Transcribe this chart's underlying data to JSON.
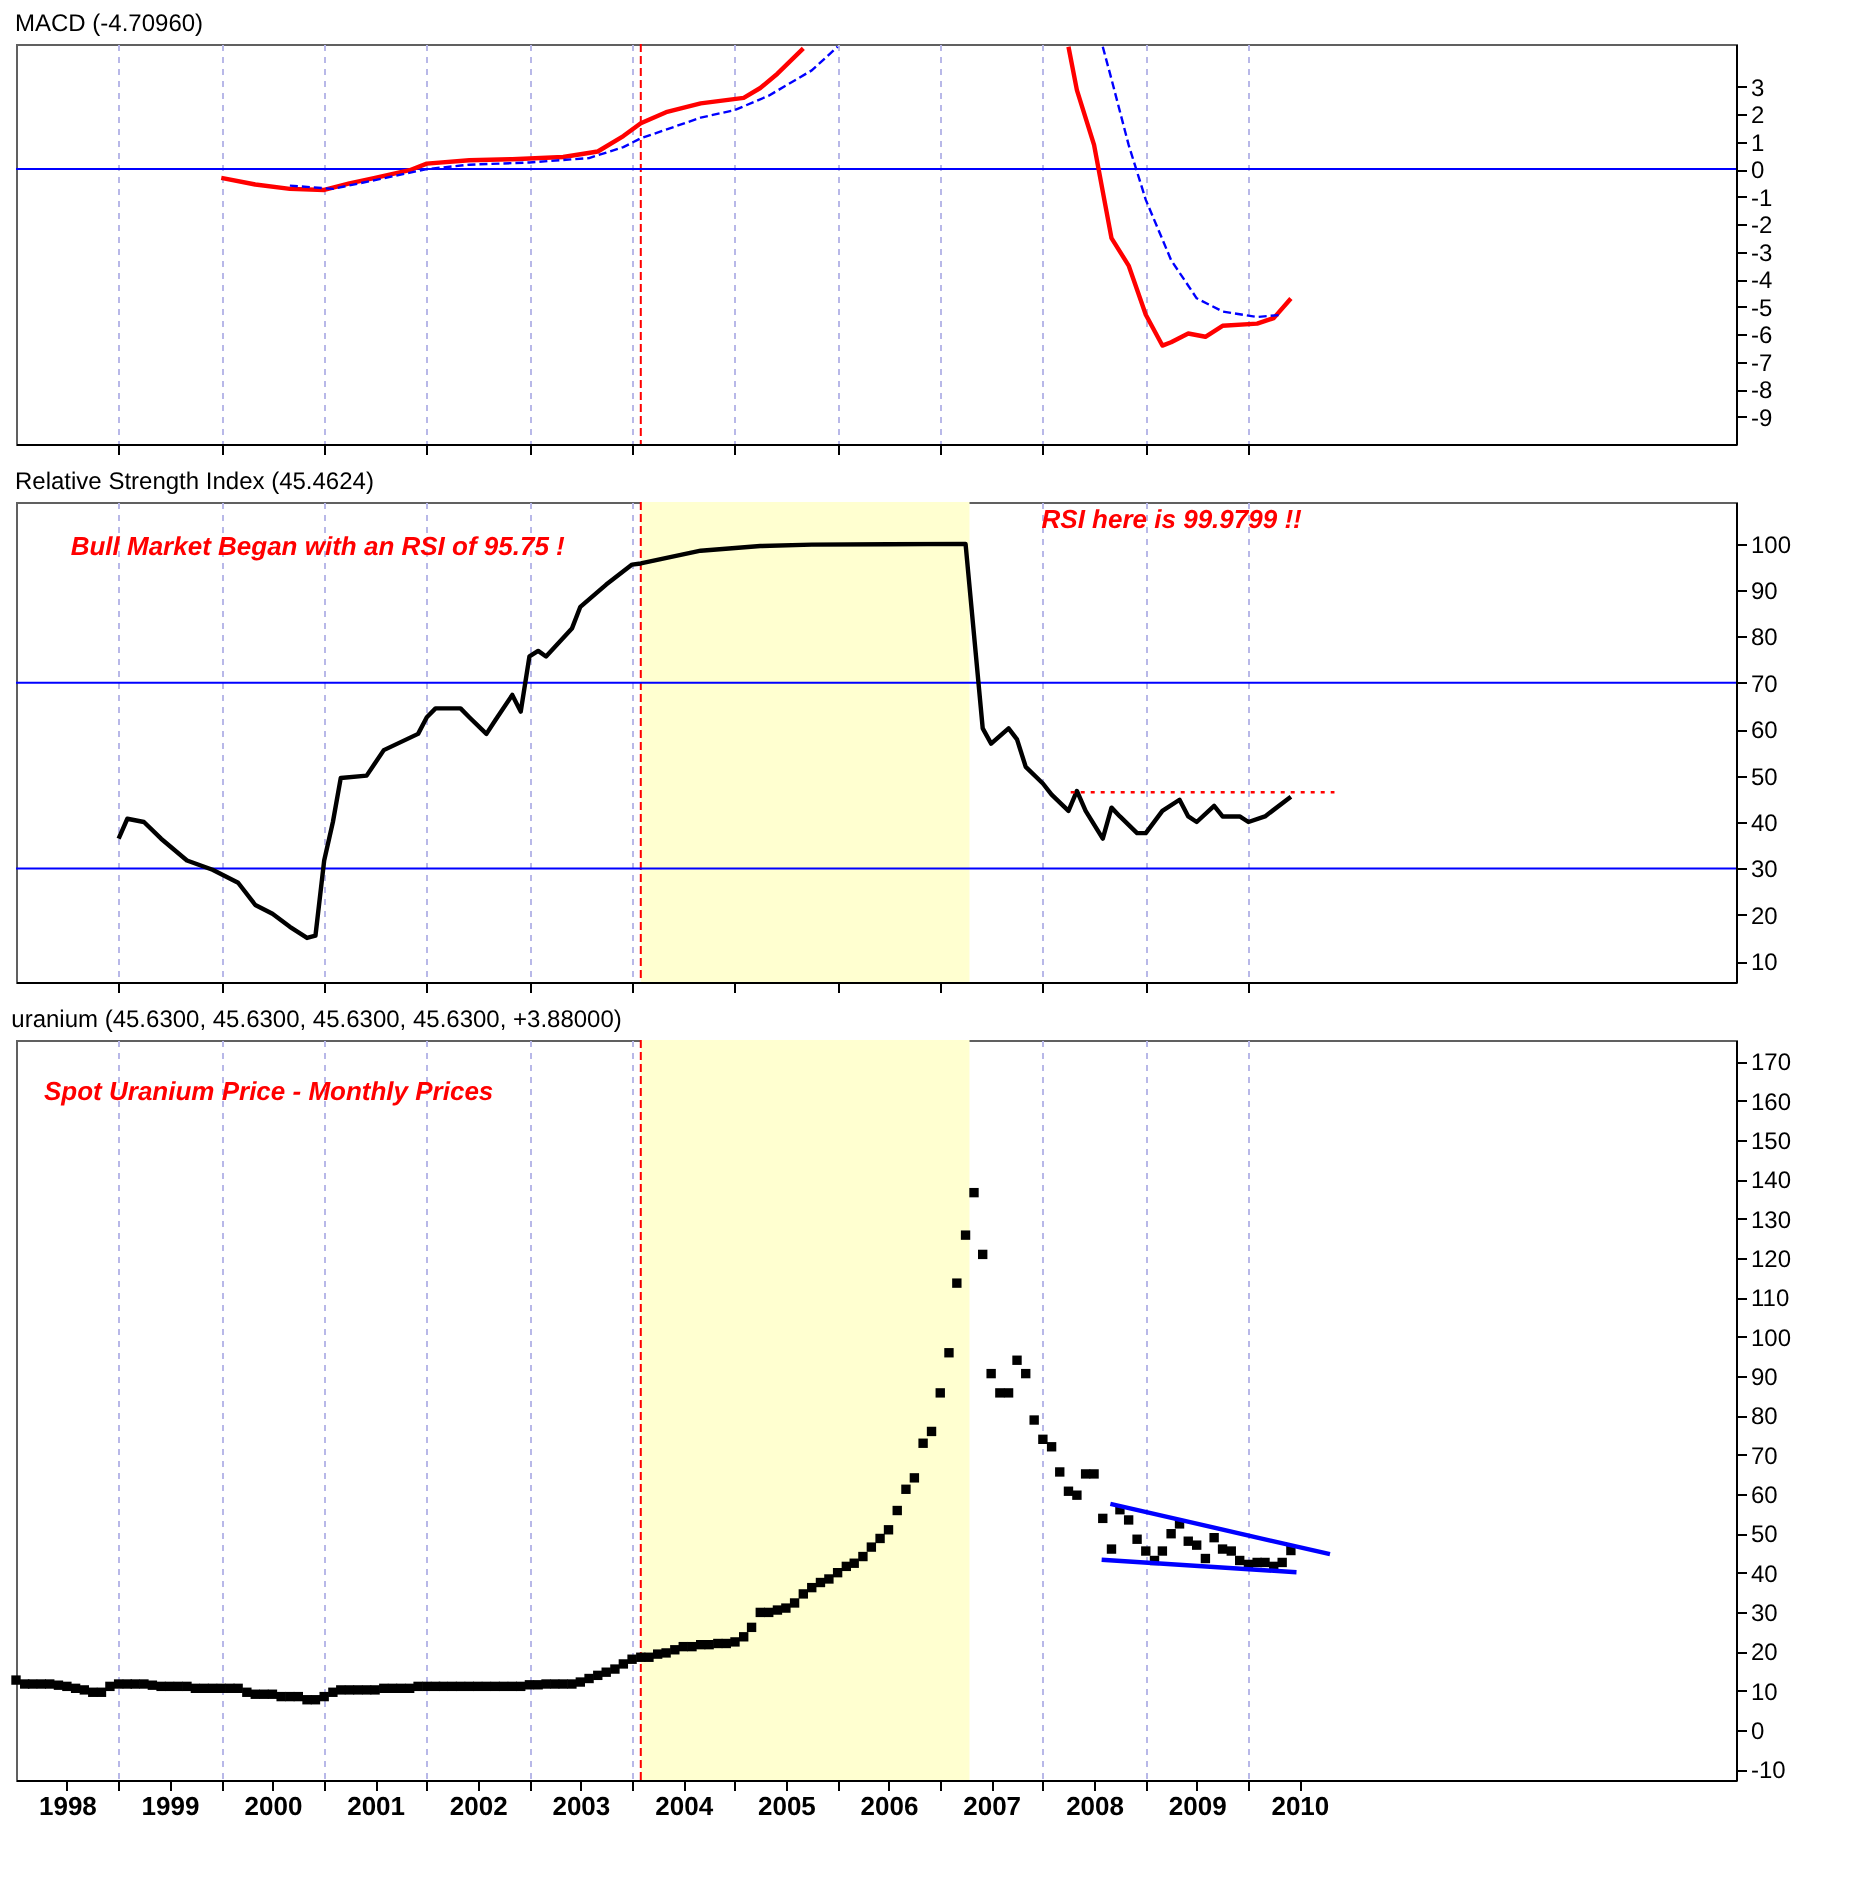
{
  "chart_data": [
    {
      "type": "line",
      "title": "MACD (-4.70960)",
      "xlim": [
        "1998-01",
        "2014-10"
      ],
      "ylim": [
        -10,
        4.55
      ],
      "yticks": [
        -9,
        -8,
        -7,
        -6,
        -5,
        -4,
        -3,
        -2,
        -1,
        0,
        1,
        2,
        3
      ],
      "grid": "x",
      "tick_labels": "y",
      "xticks": [
        {
          "value": "1999",
          "label": null
        },
        {
          "value": "2000",
          "label": null
        },
        {
          "value": "2001",
          "label": null
        },
        {
          "value": "2002",
          "label": null
        },
        {
          "value": "2003",
          "label": null
        },
        {
          "value": "2004",
          "label": null
        },
        {
          "value": "2005",
          "label": null
        },
        {
          "value": "2006",
          "label": null
        },
        {
          "value": "2007",
          "label": null
        },
        {
          "value": "2008",
          "label": null
        },
        {
          "value": "2009",
          "label": null
        },
        {
          "value": "2010",
          "label": null
        }
      ],
      "ref_lines": [
        {
          "axis": "x",
          "value": "2004-02",
          "color": "#ff0000",
          "line_style": "dashed"
        },
        {
          "axis": "y",
          "value": 0,
          "color": "#0000ff"
        }
      ],
      "series": [
        {
          "color": "#ff0000",
          "x": [
            "2000-01",
            "2000-05",
            "2000-09",
            "2001-01",
            "2001-04",
            "2001-07",
            "2001-11",
            "2002-01",
            "2002-06",
            "2002-11",
            "2003-05",
            "2003-09",
            "2003-12",
            "2004-02",
            "2004-05",
            "2004-09",
            "2005-02",
            "2005-04",
            "2005-06",
            "2005-09",
            "2006-06",
            "2008-04",
            "2008-05",
            "2008-07",
            "2008-09",
            "2008-11",
            "2009-01",
            "2009-03",
            "2009-04",
            "2009-06",
            "2009-08",
            "2009-10",
            "2010-02",
            "2010-04",
            "2010-06"
          ],
          "values": [
            -0.32,
            -0.56,
            -0.72,
            -0.76,
            -0.52,
            -0.32,
            -0.04,
            0.2,
            0.32,
            0.36,
            0.44,
            0.64,
            1.2,
            1.67,
            2.07,
            2.39,
            2.59,
            2.95,
            3.47,
            4.39,
            null,
            4.45,
            2.87,
            0.88,
            -2.51,
            -3.51,
            -5.3,
            -6.42,
            -6.3,
            -5.98,
            -6.1,
            -5.7,
            -5.62,
            -5.42,
            -4.71
          ]
        },
        {
          "color": "#0000ff",
          "line_style": "dashed",
          "x": [
            "2000-09",
            "2001-02",
            "2001-07",
            "2002-01",
            "2002-06",
            "2003-01",
            "2003-08",
            "2003-12",
            "2004-02",
            "2004-09",
            "2005-01",
            "2005-05",
            "2005-10",
            "2006-01",
            "2007-01",
            "2008-08",
            "2008-09",
            "2008-11",
            "2009-01",
            "2009-04",
            "2009-07",
            "2009-10",
            "2010-02",
            "2010-05"
          ],
          "values": [
            -0.6,
            -0.72,
            -0.4,
            0,
            0.16,
            0.24,
            0.4,
            0.8,
            1.12,
            1.87,
            2.15,
            2.67,
            3.59,
            4.45,
            null,
            4.45,
            3.27,
            0.88,
            -1.12,
            -3.31,
            -4.7,
            -5.18,
            -5.38,
            -5.3
          ]
        }
      ]
    },
    {
      "type": "line",
      "title": "Relative Strength Index (45.4624)",
      "xlim": [
        "1998-01",
        "2014-10"
      ],
      "ylim": [
        5.5,
        109
      ],
      "yticks": [
        10,
        20,
        30,
        40,
        50,
        60,
        70,
        80,
        90,
        100
      ],
      "grid": "x",
      "tick_labels": "y",
      "xticks": [
        {
          "value": "1999",
          "label": null
        },
        {
          "value": "2000",
          "label": null
        },
        {
          "value": "2001",
          "label": null
        },
        {
          "value": "2002",
          "label": null
        },
        {
          "value": "2003",
          "label": null
        },
        {
          "value": "2004",
          "label": null
        },
        {
          "value": "2005",
          "label": null
        },
        {
          "value": "2006",
          "label": null
        },
        {
          "value": "2007",
          "label": null
        },
        {
          "value": "2008",
          "label": null
        },
        {
          "value": "2009",
          "label": null
        },
        {
          "value": "2010",
          "label": null
        }
      ],
      "bands": [
        {
          "axis": "x",
          "from": "2004-02",
          "to": "2007-04-15",
          "color": "#ffffd0"
        }
      ],
      "ref_lines": [
        {
          "axis": "x",
          "value": "2004-02",
          "color": "#ff0000",
          "line_style": "dashed"
        },
        {
          "axis": "y",
          "value": 70,
          "color": "#0000ff"
        },
        {
          "axis": "y",
          "value": 30,
          "color": "#0000ff"
        }
      ],
      "annotations": [
        {
          "text": "Bull Market Began with an RSI of 95.75 !",
          "x": "2004-02",
          "y": 95.75
        },
        {
          "text": "RSI here is 99.9799  !!",
          "x": "2007-04",
          "y": 99.98
        }
      ],
      "series": [
        {
          "color": "#000000",
          "x": [
            "1999-01",
            "1999-02",
            "1999-04",
            "1999-06",
            "1999-09",
            "1999-12",
            "2000-03",
            "2000-05",
            "2000-07",
            "2000-09",
            "2000-11",
            "2000-12",
            "2001-01",
            "2001-02",
            "2001-03",
            "2001-06",
            "2001-08",
            "2001-12",
            "2002-01",
            "2002-02",
            "2002-05",
            "2002-06",
            "2002-08",
            "2002-09",
            "2002-11",
            "2002-12",
            "2003-01",
            "2003-02",
            "2003-03",
            "2003-06",
            "2003-07",
            "2003-10",
            "2004-01",
            "2004-02",
            "2004-09",
            "2005-04",
            "2005-10",
            "2006-07",
            "2007-04",
            "2007-06",
            "2007-07",
            "2007-09",
            "2007-10",
            "2007-11",
            "2008-01",
            "2008-02",
            "2008-04",
            "2008-05",
            "2008-06",
            "2008-08",
            "2008-09",
            "2008-10",
            "2008-12",
            "2009-01",
            "2009-03",
            "2009-05",
            "2009-06",
            "2009-07",
            "2009-09",
            "2009-10",
            "2009-12",
            "2010-01",
            "2010-03",
            "2010-06"
          ],
          "values": [
            36.4,
            40.7,
            40,
            36.4,
            31.7,
            29.7,
            26.9,
            22.1,
            20.2,
            17.4,
            15,
            15.5,
            31.7,
            40,
            49.5,
            50,
            55.5,
            59,
            62.6,
            64.5,
            64.5,
            62.6,
            59,
            61.9,
            67.4,
            63.8,
            75.7,
            76.9,
            75.7,
            81.7,
            86.4,
            91.2,
            95.5,
            95.75,
            98.5,
            99.5,
            99.8,
            99.9,
            99.98,
            60.2,
            56.9,
            60.2,
            57.8,
            51.9,
            48.3,
            45.9,
            42.4,
            46.7,
            42.4,
            36.4,
            43.1,
            41.2,
            37.6,
            37.6,
            42.4,
            44.8,
            41.2,
            40,
            43.5,
            41.2,
            41.2,
            40,
            41.2,
            45.46
          ]
        },
        {
          "color": "#ff0000",
          "line_style": "dotted",
          "x": [
            "2008-04-09",
            "2010-11-03"
          ],
          "values": [
            46.4,
            46.4
          ]
        }
      ]
    },
    {
      "type": "scatter",
      "title": "uranium (45.6300, 45.6300, 45.6300, 45.6300, +3.88000)",
      "xlim": [
        "1998-01",
        "2014-10"
      ],
      "ylim": [
        -12.7,
        175.4
      ],
      "yticks": [
        -10,
        0,
        10,
        20,
        30,
        40,
        50,
        60,
        70,
        80,
        90,
        100,
        110,
        120,
        130,
        140,
        150,
        160,
        170
      ],
      "grid": "x",
      "xticks": [
        {
          "value": "1998-07",
          "label": "1998"
        },
        {
          "value": "1999",
          "label": null
        },
        {
          "value": "1999-07",
          "label": "1999"
        },
        {
          "value": "2000",
          "label": null
        },
        {
          "value": "2000-07",
          "label": "2000"
        },
        {
          "value": "2001",
          "label": null
        },
        {
          "value": "2001-07",
          "label": "2001"
        },
        {
          "value": "2002",
          "label": null
        },
        {
          "value": "2002-07",
          "label": "2002"
        },
        {
          "value": "2003",
          "label": null
        },
        {
          "value": "2003-07",
          "label": "2003"
        },
        {
          "value": "2004",
          "label": null
        },
        {
          "value": "2004-07",
          "label": "2004"
        },
        {
          "value": "2005",
          "label": null
        },
        {
          "value": "2005-07",
          "label": "2005"
        },
        {
          "value": "2006",
          "label": null
        },
        {
          "value": "2006-07",
          "label": "2006"
        },
        {
          "value": "2007",
          "label": null
        },
        {
          "value": "2007-07",
          "label": "2007"
        },
        {
          "value": "2008",
          "label": null
        },
        {
          "value": "2008-07",
          "label": "2008"
        },
        {
          "value": "2009",
          "label": null
        },
        {
          "value": "2009-07",
          "label": "2009"
        },
        {
          "value": "2010",
          "label": null
        },
        {
          "value": "2010-07",
          "label": "2010"
        }
      ],
      "bands": [
        {
          "axis": "x",
          "from": "2004-02",
          "to": "2007-04-15",
          "color": "#ffffd0"
        }
      ],
      "ref_lines": [
        {
          "axis": "x",
          "value": "2004-02",
          "color": "#ff0000",
          "line_style": "dashed"
        }
      ],
      "annotations": [
        "Spot Uranium Price - Monthly Prices"
      ],
      "series": [
        {
          "color": "#000000",
          "marker": "square",
          "x": [
            "1998-01",
            "1998-02",
            "1998-03",
            "1998-04",
            "1998-05",
            "1998-06",
            "1998-07",
            "1998-08",
            "1998-09",
            "1998-10",
            "1998-11",
            "1998-12",
            "1999-01",
            "1999-02",
            "1999-03",
            "1999-04",
            "1999-05",
            "1999-06",
            "1999-07",
            "1999-08",
            "1999-09",
            "1999-10",
            "1999-11",
            "1999-12",
            "2000-01",
            "2000-02",
            "2000-03",
            "2000-04",
            "2000-05",
            "2000-06",
            "2000-07",
            "2000-08",
            "2000-09",
            "2000-10",
            "2000-11",
            "2000-12",
            "2001-01",
            "2001-02",
            "2001-03",
            "2001-04",
            "2001-05",
            "2001-06",
            "2001-07",
            "2001-08",
            "2001-09",
            "2001-10",
            "2001-11",
            "2001-12",
            "2002-01",
            "2002-02",
            "2002-03",
            "2002-04",
            "2002-05",
            "2002-06",
            "2002-07",
            "2002-08",
            "2002-09",
            "2002-10",
            "2002-11",
            "2002-12",
            "2003-01",
            "2003-02",
            "2003-03",
            "2003-04",
            "2003-05",
            "2003-06",
            "2003-07",
            "2003-08",
            "2003-09",
            "2003-10",
            "2003-11",
            "2003-12",
            "2004-01",
            "2004-02",
            "2004-03",
            "2004-04",
            "2004-05",
            "2004-06",
            "2004-07",
            "2004-08",
            "2004-09",
            "2004-10",
            "2004-11",
            "2004-12",
            "2005-01",
            "2005-02",
            "2005-03",
            "2005-04",
            "2005-05",
            "2005-06",
            "2005-07",
            "2005-08",
            "2005-09",
            "2005-10",
            "2005-11",
            "2005-12",
            "2006-01",
            "2006-02",
            "2006-03",
            "2006-04",
            "2006-05",
            "2006-06",
            "2006-07",
            "2006-08",
            "2006-09",
            "2006-10",
            "2006-11",
            "2006-12",
            "2007-01",
            "2007-02",
            "2007-03",
            "2007-04",
            "2007-05",
            "2007-06",
            "2007-07",
            "2007-08",
            "2007-09",
            "2007-10",
            "2007-11",
            "2007-12",
            "2008-01",
            "2008-02",
            "2008-03",
            "2008-04",
            "2008-05",
            "2008-06",
            "2008-07",
            "2008-08",
            "2008-09",
            "2008-10",
            "2008-11",
            "2008-12",
            "2009-01",
            "2009-02",
            "2009-03",
            "2009-04",
            "2009-05",
            "2009-06",
            "2009-07",
            "2009-08",
            "2009-09",
            "2009-10",
            "2009-11",
            "2009-12",
            "2010-01",
            "2010-02",
            "2010-03",
            "2010-04",
            "2010-05",
            "2010-06"
          ],
          "values": [
            12.7,
            11.7,
            11.7,
            11.7,
            11.7,
            11.4,
            11.1,
            10.6,
            10.2,
            9.6,
            9.6,
            11.1,
            11.7,
            11.7,
            11.7,
            11.7,
            11.4,
            11.1,
            11.1,
            11.1,
            11.1,
            10.6,
            10.6,
            10.6,
            10.6,
            10.6,
            10.6,
            9.6,
            9.1,
            9.1,
            9.1,
            8.5,
            8.5,
            8.5,
            7.7,
            7.7,
            8.5,
            9.6,
            10.2,
            10.2,
            10.2,
            10.2,
            10.2,
            10.6,
            10.6,
            10.6,
            10.6,
            11.1,
            11.1,
            11.1,
            11.1,
            11.1,
            11.1,
            11.1,
            11.1,
            11.1,
            11.1,
            11.1,
            11.1,
            11.1,
            11.5,
            11.5,
            11.7,
            11.7,
            11.7,
            11.7,
            12.2,
            13.1,
            13.9,
            14.7,
            15.5,
            16.8,
            18.0,
            18.5,
            18.5,
            19.3,
            19.6,
            20.4,
            21.2,
            21.2,
            21.7,
            21.7,
            22.0,
            22.0,
            22.4,
            23.7,
            26.1,
            29.9,
            29.9,
            30.5,
            31.0,
            32.3,
            34.6,
            36.2,
            37.5,
            38.4,
            40.0,
            41.6,
            42.4,
            44.1,
            46.5,
            48.7,
            50.9,
            55.8,
            61.2,
            64.1,
            72.9,
            75.9,
            85.7,
            95.9,
            113.6,
            125.8,
            136.6,
            120.9,
            90.6,
            85.7,
            85.7,
            94,
            90.6,
            78.8,
            73.9,
            72,
            65.6,
            60.7,
            59.7,
            65.1,
            65.1,
            53.8,
            46,
            56,
            53.4,
            48.5,
            45.5,
            43.1,
            45.5,
            49.9,
            52.4,
            48,
            47,
            43.6,
            48.9,
            46,
            45.5,
            43.1,
            42.1,
            42.6,
            42.6,
            41.6,
            42.6,
            45.63
          ]
        },
        {
          "type": "line",
          "color": "#0000ff",
          "x": [
            "2008-08-28",
            "2010-10-18"
          ],
          "values": [
            57.5,
            44.7
          ]
        },
        {
          "type": "line",
          "color": "#0000ff",
          "x": [
            "2008-07-28",
            "2010-06-21"
          ],
          "values": [
            43.3,
            40.1
          ]
        }
      ]
    }
  ]
}
